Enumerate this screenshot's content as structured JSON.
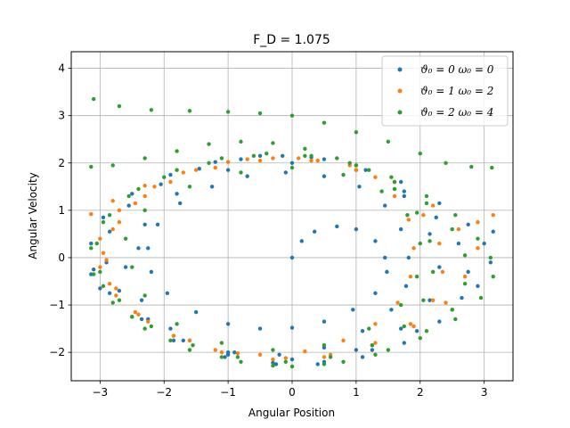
{
  "chart_data": {
    "type": "scatter",
    "title": "F_D = 1.075",
    "xlabel": "Angular Position",
    "ylabel": "Angular Velocity",
    "xlim": [
      -3.45,
      3.45
    ],
    "ylim": [
      -2.6,
      4.35
    ],
    "xticks": [
      -3,
      -2,
      -1,
      0,
      1,
      2,
      3
    ],
    "yticks": [
      -2,
      -1,
      0,
      1,
      2,
      3,
      4
    ],
    "xtick_labels": [
      "−3",
      "−2",
      "−1",
      "0",
      "1",
      "2",
      "3"
    ],
    "ytick_labels": [
      "−2",
      "−1",
      "0",
      "1",
      "2",
      "3",
      "4"
    ],
    "grid": true,
    "legend_position": "top-right",
    "series": [
      {
        "name": "ϑ₀ = 0 ω₀ = 0",
        "color": "#1f77b4",
        "points": [
          [
            0,
            0
          ],
          [
            0.15,
            0.35
          ],
          [
            0.35,
            0.55
          ],
          [
            0.7,
            0.66
          ],
          [
            1.0,
            0.6
          ],
          [
            1.3,
            0.35
          ],
          [
            1.45,
            0.0
          ],
          [
            1.48,
            -0.3
          ],
          [
            1.3,
            -0.75
          ],
          [
            0.95,
            -1.1
          ],
          [
            0.5,
            -1.35
          ],
          [
            0.0,
            -1.48
          ],
          [
            -0.5,
            -1.5
          ],
          [
            -1.0,
            -1.4
          ],
          [
            -1.5,
            -1.15
          ],
          [
            -1.95,
            -0.75
          ],
          [
            -2.2,
            -0.3
          ],
          [
            -2.25,
            0.2
          ],
          [
            -2.1,
            0.7
          ],
          [
            -1.75,
            1.15
          ],
          [
            -1.25,
            1.5
          ],
          [
            -0.7,
            1.72
          ],
          [
            -0.1,
            1.8
          ],
          [
            0.5,
            1.72
          ],
          [
            1.05,
            1.5
          ],
          [
            1.45,
            1.1
          ],
          [
            1.7,
            0.6
          ],
          [
            1.82,
            0.0
          ],
          [
            1.78,
            -0.6
          ],
          [
            1.55,
            -1.1
          ],
          [
            1.1,
            -1.55
          ],
          [
            0.5,
            -1.9
          ],
          [
            -0.2,
            -2.05
          ],
          [
            -0.9,
            -2.0
          ],
          [
            -1.6,
            -1.75
          ],
          [
            -2.25,
            -1.3
          ],
          [
            -2.7,
            -0.7
          ],
          [
            -2.9,
            -0.1
          ],
          [
            -2.85,
            0.55
          ],
          [
            -2.55,
            1.1
          ],
          [
            -2.05,
            1.55
          ],
          [
            -1.45,
            1.88
          ],
          [
            -0.8,
            2.08
          ],
          [
            -0.15,
            2.15
          ],
          [
            0.5,
            2.08
          ],
          [
            1.15,
            1.85
          ],
          [
            1.75,
            1.4
          ],
          [
            2.25,
            0.85
          ],
          [
            2.6,
            0.3
          ],
          [
            2.75,
            -0.3
          ],
          [
            2.65,
            -0.85
          ],
          [
            2.3,
            -1.35
          ],
          [
            1.75,
            -1.8
          ],
          [
            1.1,
            -2.1
          ],
          [
            0.4,
            -2.25
          ],
          [
            -0.3,
            -2.22
          ],
          [
            -1.0,
            -2.05
          ],
          [
            -1.7,
            -1.75
          ],
          [
            -2.35,
            -1.3
          ],
          [
            -2.85,
            -0.75
          ],
          [
            -3.1,
            -0.25
          ],
          [
            -3.14,
            0.3
          ],
          [
            -2.95,
            0.85
          ],
          [
            -2.5,
            1.35
          ],
          [
            -1.9,
            1.75
          ],
          [
            -1.2,
            2.02
          ],
          [
            -0.5,
            2.15
          ],
          [
            0.3,
            2.12
          ],
          [
            1.0,
            1.95
          ],
          [
            1.7,
            1.6
          ],
          [
            2.3,
            1.15
          ],
          [
            2.75,
            0.7
          ],
          [
            3.0,
            0.3
          ],
          [
            3.14,
            0.55
          ],
          [
            3.1,
            -0.1
          ],
          [
            2.9,
            -0.6
          ],
          [
            2.5,
            -1.1
          ],
          [
            1.95,
            -1.55
          ],
          [
            1.25,
            -1.95
          ],
          [
            0.5,
            -2.2
          ],
          [
            -0.25,
            -2.25
          ],
          [
            -1.05,
            -2.1
          ],
          [
            -1.85,
            -1.75
          ],
          [
            -2.5,
            -1.25
          ],
          [
            -3.0,
            -0.65
          ],
          [
            -3.14,
            -0.35
          ],
          [
            -2.6,
            -0.2
          ],
          [
            -2.4,
            0.2
          ],
          [
            -2.3,
            0.7
          ],
          [
            -1.8,
            1.35
          ],
          [
            -1.0,
            1.85
          ],
          [
            0.0,
            2.0
          ],
          [
            1.0,
            1.85
          ],
          [
            1.75,
            1.3
          ],
          [
            2.15,
            0.5
          ],
          [
            2.3,
            -0.2
          ],
          [
            2.15,
            -0.9
          ],
          [
            1.7,
            -1.5
          ],
          [
            1.0,
            -1.95
          ],
          [
            0.0,
            -2.15
          ],
          [
            -1.0,
            -2.0
          ],
          [
            -1.9,
            -1.5
          ],
          [
            -2.35,
            -0.9
          ]
        ]
      },
      {
        "name": "ϑ₀ = 1 ω₀ = 2",
        "color": "#ff7f0e",
        "points": [
          [
            -3.14,
            0.92
          ],
          [
            -2.8,
            1.2
          ],
          [
            -2.3,
            1.52
          ],
          [
            -1.7,
            1.8
          ],
          [
            -1.0,
            2.02
          ],
          [
            -0.3,
            2.1
          ],
          [
            0.4,
            2.05
          ],
          [
            1.0,
            1.95
          ],
          [
            1.3,
            1.7
          ],
          [
            1.6,
            1.3
          ],
          [
            1.82,
            0.8
          ],
          [
            1.9,
            0.2
          ],
          [
            1.85,
            -0.4
          ],
          [
            1.65,
            -0.95
          ],
          [
            1.3,
            -1.4
          ],
          [
            0.8,
            -1.75
          ],
          [
            0.2,
            -1.98
          ],
          [
            -0.5,
            -2.05
          ],
          [
            -1.2,
            -1.95
          ],
          [
            -1.85,
            -1.65
          ],
          [
            -2.4,
            -1.2
          ],
          [
            -2.75,
            -0.65
          ],
          [
            -2.9,
            -0.05
          ],
          [
            -2.8,
            0.6
          ],
          [
            -2.45,
            1.15
          ],
          [
            -1.9,
            1.6
          ],
          [
            -1.2,
            1.9
          ],
          [
            -0.5,
            2.05
          ],
          [
            0.3,
            2.05
          ],
          [
            1.0,
            1.85
          ],
          [
            1.6,
            1.45
          ],
          [
            2.05,
            0.9
          ],
          [
            2.3,
            0.3
          ],
          [
            2.35,
            -0.3
          ],
          [
            2.2,
            -0.9
          ],
          [
            1.85,
            -1.4
          ],
          [
            1.3,
            -1.8
          ],
          [
            0.6,
            -2.05
          ],
          [
            -0.1,
            -2.12
          ],
          [
            -0.85,
            -2.02
          ],
          [
            -1.6,
            -1.75
          ],
          [
            -2.25,
            -1.35
          ],
          [
            -2.75,
            -0.8
          ],
          [
            -3.0,
            -0.2
          ],
          [
            -3.0,
            0.4
          ],
          [
            -2.7,
            1.0
          ],
          [
            -2.15,
            1.5
          ],
          [
            -1.5,
            1.85
          ],
          [
            -0.7,
            2.08
          ],
          [
            0.1,
            2.1
          ],
          [
            0.9,
            1.95
          ],
          [
            1.6,
            1.6
          ],
          [
            2.2,
            1.1
          ],
          [
            2.6,
            0.6
          ],
          [
            2.9,
            0.75
          ],
          [
            3.14,
            0.9
          ],
          [
            2.9,
            0.2
          ],
          [
            2.7,
            -0.4
          ],
          [
            2.4,
            -0.95
          ],
          [
            1.9,
            -1.45
          ],
          [
            1.25,
            -1.85
          ],
          [
            0.5,
            -2.1
          ],
          [
            -0.3,
            -2.15
          ],
          [
            -1.1,
            -2.0
          ],
          [
            -1.85,
            -1.65
          ],
          [
            -2.45,
            -1.15
          ],
          [
            -2.85,
            -0.55
          ],
          [
            -2.95,
            0.1
          ],
          [
            -2.7,
            0.75
          ],
          [
            -2.3,
            1.3
          ]
        ]
      },
      {
        "name": "ϑ₀ = 2 ω₀ = 4",
        "color": "#2ca02c",
        "points": [
          [
            -3.1,
            3.35
          ],
          [
            -2.7,
            3.2
          ],
          [
            -2.2,
            3.12
          ],
          [
            -1.6,
            3.1
          ],
          [
            -1.0,
            3.08
          ],
          [
            -0.5,
            3.05
          ],
          [
            0.0,
            3.0
          ],
          [
            0.5,
            2.85
          ],
          [
            1.0,
            2.65
          ],
          [
            1.5,
            2.45
          ],
          [
            2.0,
            2.2
          ],
          [
            2.4,
            2.0
          ],
          [
            2.8,
            1.92
          ],
          [
            3.12,
            1.9
          ],
          [
            -3.14,
            1.92
          ],
          [
            -2.8,
            1.95
          ],
          [
            -2.3,
            2.1
          ],
          [
            -1.8,
            2.25
          ],
          [
            -1.3,
            2.4
          ],
          [
            -0.8,
            2.45
          ],
          [
            -0.3,
            2.42
          ],
          [
            0.2,
            2.3
          ],
          [
            0.7,
            2.1
          ],
          [
            1.2,
            1.85
          ],
          [
            1.6,
            1.45
          ],
          [
            1.95,
            0.95
          ],
          [
            2.15,
            0.35
          ],
          [
            2.2,
            -0.3
          ],
          [
            2.05,
            -0.9
          ],
          [
            1.75,
            -1.45
          ],
          [
            1.25,
            -1.85
          ],
          [
            0.6,
            -2.1
          ],
          [
            -0.1,
            -2.2
          ],
          [
            -0.85,
            -2.1
          ],
          [
            -1.55,
            -1.85
          ],
          [
            -2.2,
            -1.45
          ],
          [
            -2.7,
            -0.9
          ],
          [
            -3.0,
            -0.3
          ],
          [
            -3.05,
            0.3
          ],
          [
            -2.85,
            0.9
          ],
          [
            -2.4,
            1.45
          ],
          [
            -1.8,
            1.85
          ],
          [
            -1.1,
            2.1
          ],
          [
            -0.4,
            2.2
          ],
          [
            0.3,
            2.15
          ],
          [
            1.0,
            1.95
          ],
          [
            1.6,
            1.6
          ],
          [
            2.1,
            1.15
          ],
          [
            2.5,
            0.6
          ],
          [
            2.7,
            0.05
          ],
          [
            2.7,
            -0.55
          ],
          [
            2.5,
            -1.1
          ],
          [
            2.1,
            -1.55
          ],
          [
            1.5,
            -1.95
          ],
          [
            0.8,
            -2.2
          ],
          [
            0.0,
            -2.3
          ],
          [
            -0.8,
            -2.2
          ],
          [
            -1.6,
            -1.95
          ],
          [
            -2.3,
            -1.5
          ],
          [
            -2.8,
            -0.95
          ],
          [
            -3.1,
            -0.35
          ],
          [
            -3.14,
            0.2
          ],
          [
            -2.95,
            0.75
          ],
          [
            -2.55,
            1.3
          ],
          [
            -2.0,
            1.7
          ],
          [
            -1.3,
            2.0
          ],
          [
            -0.6,
            2.15
          ],
          [
            0.2,
            2.15
          ],
          [
            0.9,
            2.0
          ],
          [
            1.55,
            1.7
          ],
          [
            2.1,
            1.3
          ],
          [
            2.55,
            0.9
          ],
          [
            2.9,
            0.4
          ],
          [
            3.1,
            0.0
          ],
          [
            3.14,
            -0.4
          ],
          [
            2.95,
            -0.85
          ],
          [
            2.55,
            -1.3
          ],
          [
            2.0,
            -1.7
          ],
          [
            1.3,
            -2.05
          ],
          [
            0.5,
            -2.25
          ],
          [
            -0.3,
            -2.28
          ],
          [
            -1.1,
            -2.1
          ],
          [
            -1.9,
            -1.75
          ],
          [
            -2.5,
            -1.25
          ],
          [
            -2.95,
            -0.6
          ],
          [
            -2.5,
            -0.2
          ],
          [
            -2.6,
            0.4
          ],
          [
            -2.3,
            1.0
          ],
          [
            -1.6,
            1.5
          ],
          [
            -0.8,
            1.8
          ],
          [
            0.0,
            1.9
          ],
          [
            0.8,
            1.75
          ],
          [
            1.4,
            1.4
          ],
          [
            1.8,
            0.9
          ],
          [
            2.0,
            0.3
          ],
          [
            1.95,
            -0.4
          ],
          [
            1.7,
            -1.0
          ],
          [
            1.2,
            -1.5
          ],
          [
            0.5,
            -1.85
          ],
          [
            -0.3,
            -1.95
          ],
          [
            -1.1,
            -1.8
          ],
          [
            -1.8,
            -1.4
          ],
          [
            -2.3,
            -0.8
          ]
        ]
      }
    ]
  }
}
